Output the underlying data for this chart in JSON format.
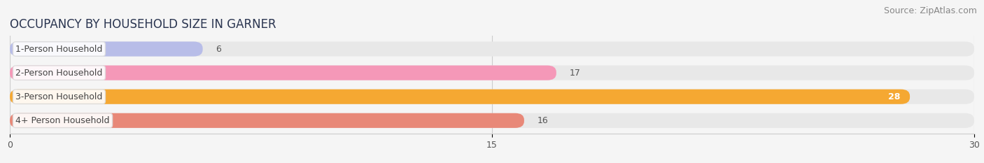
{
  "title": "OCCUPANCY BY HOUSEHOLD SIZE IN GARNER",
  "source": "Source: ZipAtlas.com",
  "categories": [
    "1-Person Household",
    "2-Person Household",
    "3-Person Household",
    "4+ Person Household"
  ],
  "values": [
    6,
    17,
    28,
    16
  ],
  "bar_colors": [
    "#b8bde8",
    "#f598b8",
    "#f5a832",
    "#e88878"
  ],
  "bar_bg_color": "#e8e8e8",
  "xlim": [
    0,
    30
  ],
  "xticks": [
    0,
    15,
    30
  ],
  "title_fontsize": 12,
  "source_fontsize": 9,
  "label_fontsize": 9,
  "value_fontsize": 9,
  "background_color": "#f5f5f5",
  "bar_height": 0.62,
  "bar_gap": 0.38
}
